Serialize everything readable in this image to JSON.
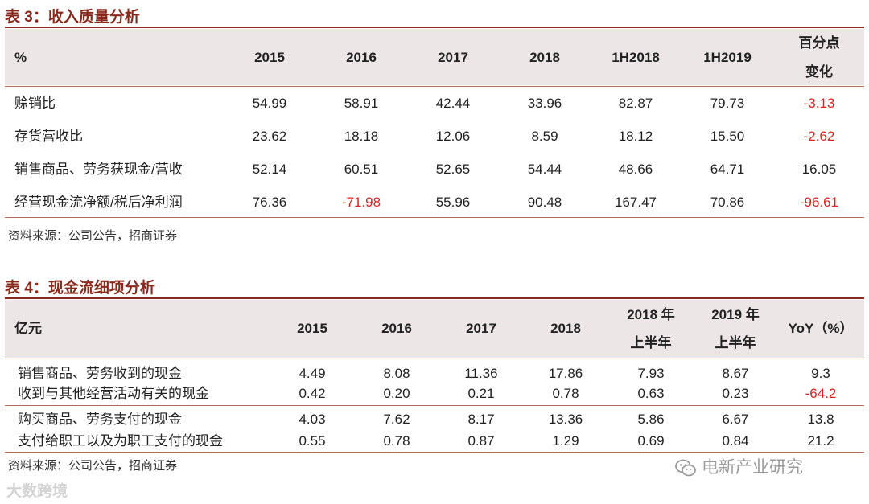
{
  "table3": {
    "title": "表 3：收入质量分析",
    "header": [
      "%",
      "2015",
      "2016",
      "2017",
      "2018",
      "1H2018",
      "1H2019",
      "百分点",
      "变化"
    ],
    "rows": [
      {
        "label": "赊销比",
        "values": [
          "54.99",
          "58.91",
          "42.44",
          "33.96",
          "82.87",
          "79.73"
        ],
        "change": "-3.13"
      },
      {
        "label": "存货营收比",
        "values": [
          "23.62",
          "18.18",
          "12.06",
          "8.59",
          "18.12",
          "15.50"
        ],
        "change": "-2.62"
      },
      {
        "label": "销售商品、劳务获现金/营收",
        "values": [
          "52.14",
          "60.51",
          "52.65",
          "54.44",
          "48.66",
          "64.71"
        ],
        "change": "16.05"
      },
      {
        "label": "经营现金流净额/税后净利润",
        "values": [
          "76.36",
          "-71.98",
          "55.96",
          "90.48",
          "167.47",
          "70.86"
        ],
        "change": "-96.61"
      }
    ],
    "source": "资料来源：公司公告，招商证券"
  },
  "table4": {
    "title": "表 4：现金流细项分析",
    "header": [
      "亿元",
      "2015",
      "2016",
      "2017",
      "2018",
      "2018 年",
      "上半年",
      "2019 年",
      "上半年",
      "YoY（%）"
    ],
    "rows": [
      {
        "label": "销售商品、劳务收到的现金",
        "values": [
          "4.49",
          "8.08",
          "11.36",
          "17.86",
          "7.93",
          "8.67"
        ],
        "yoy": "9.3"
      },
      {
        "label": "收到与其他经营活动有关的现金",
        "values": [
          "0.42",
          "0.20",
          "0.21",
          "0.78",
          "0.63",
          "0.23"
        ],
        "yoy": "-64.2"
      },
      {
        "label": "购买商品、劳务支付的现金",
        "values": [
          "4.03",
          "7.62",
          "8.17",
          "13.36",
          "5.86",
          "6.67"
        ],
        "yoy": "13.8"
      },
      {
        "label": "支付给职工以及为职工支付的现金",
        "values": [
          "0.55",
          "0.78",
          "0.87",
          "1.29",
          "0.69",
          "0.84"
        ],
        "yoy": "21.2"
      }
    ],
    "source": "资料来源：公司公告，招商证券"
  },
  "watermarks": {
    "left": "大数跨境",
    "right": "电新产业研究"
  },
  "colors": {
    "accent": "#8b2a1c",
    "negative": "#e3211d",
    "header_band": "#ece7e6"
  }
}
